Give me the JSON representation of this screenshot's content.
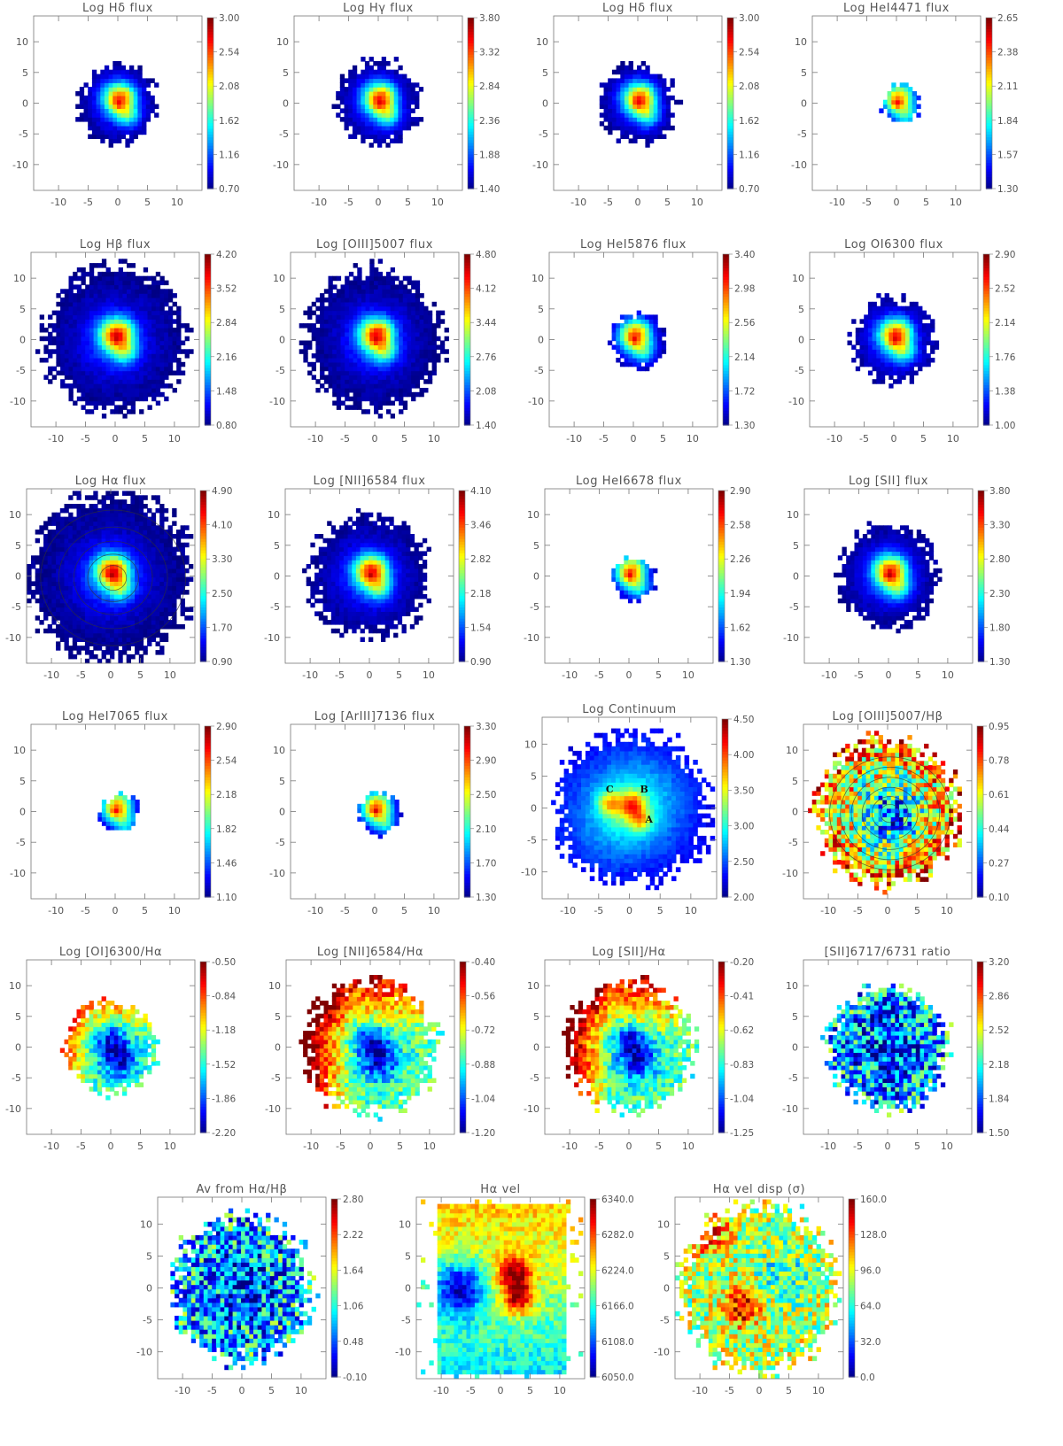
{
  "colors": {
    "axis": "#777777",
    "text": "#555555",
    "contour": "#333333"
  },
  "axis_tick_labels": [
    "-10",
    "-5",
    "0",
    "5",
    "10"
  ],
  "panels": [
    {
      "title": "Log Hδ flux",
      "cbar": [
        "3.00",
        "2.54",
        "2.08",
        "1.62",
        "1.16",
        "0.70"
      ],
      "pattern": "flux",
      "r": 6.5,
      "vanish": 0.18,
      "cpow": 1.6
    },
    {
      "title": "Log Hγ flux",
      "cbar": [
        "3.80",
        "3.32",
        "2.84",
        "2.36",
        "1.88",
        "1.40"
      ],
      "pattern": "flux",
      "r": 7,
      "vanish": 0.2,
      "cpow": 1.6
    },
    {
      "title": "Log Hδ flux",
      "cbar": [
        "3.00",
        "2.54",
        "2.08",
        "1.62",
        "1.16",
        "0.70"
      ],
      "pattern": "flux",
      "r": 6.5,
      "vanish": 0.18,
      "cpow": 1.6
    },
    {
      "title": "Log HeI4471 flux",
      "cbar": [
        "2.65",
        "2.38",
        "2.11",
        "1.84",
        "1.57",
        "1.30"
      ],
      "pattern": "flux",
      "r": 3.2,
      "vanish": 0.05,
      "cpow": 1.2
    },
    {
      "title": "Log Hβ flux",
      "cbar": [
        "4.20",
        "3.52",
        "2.84",
        "2.16",
        "1.48",
        "0.80"
      ],
      "pattern": "flux",
      "r": 12,
      "vanish": 0.25,
      "cpow": 2.0
    },
    {
      "title": "Log [OIII]5007 flux",
      "cbar": [
        "4.80",
        "4.12",
        "3.44",
        "2.76",
        "2.08",
        "1.40"
      ],
      "pattern": "flux",
      "r": 11.5,
      "vanish": 0.2,
      "cpow": 2.0
    },
    {
      "title": "Log HeI5876 flux",
      "cbar": [
        "3.40",
        "2.98",
        "2.56",
        "2.14",
        "1.72",
        "1.30"
      ],
      "pattern": "flux",
      "r": 4.6,
      "vanish": 0.04,
      "cpow": 1.3
    },
    {
      "title": "Log OI6300 flux",
      "cbar": [
        "2.90",
        "2.52",
        "2.14",
        "1.76",
        "1.38",
        "1.00"
      ],
      "pattern": "flux",
      "r": 7,
      "vanish": 0.2,
      "cpow": 1.5
    },
    {
      "title": "Log Hα flux",
      "cbar": [
        "4.90",
        "4.10",
        "3.30",
        "2.50",
        "1.70",
        "0.90"
      ],
      "pattern": "flux",
      "r": 14,
      "vanish": 0.25,
      "cpow": 2.2,
      "contours": true
    },
    {
      "title": "Log [NII]6584 flux",
      "cbar": [
        "4.10",
        "3.46",
        "2.82",
        "2.18",
        "1.54",
        "0.90"
      ],
      "pattern": "flux",
      "r": 10,
      "vanish": 0.2,
      "cpow": 1.8
    },
    {
      "title": "Log HeI6678 flux",
      "cbar": [
        "2.90",
        "2.58",
        "2.26",
        "1.94",
        "1.62",
        "1.30"
      ],
      "pattern": "flux",
      "r": 3.6,
      "vanish": 0.05,
      "cpow": 1.2
    },
    {
      "title": "Log [SII] flux",
      "cbar": [
        "3.80",
        "3.30",
        "2.80",
        "2.30",
        "1.80",
        "1.30"
      ],
      "pattern": "flux",
      "r": 8.5,
      "vanish": 0.2,
      "cpow": 1.7
    },
    {
      "title": "Log HeI7065 flux",
      "cbar": [
        "2.90",
        "2.54",
        "2.18",
        "1.82",
        "1.46",
        "1.10"
      ],
      "pattern": "flux",
      "r": 3.2,
      "vanish": 0.05,
      "cpow": 1.2
    },
    {
      "title": "Log [ArIII]7136 flux",
      "cbar": [
        "3.30",
        "2.90",
        "2.50",
        "2.10",
        "1.70",
        "1.30"
      ],
      "pattern": "flux",
      "r": 3.6,
      "vanish": 0.05,
      "cpow": 1.2
    },
    {
      "title": "Log Continuum",
      "cbar": [
        "4.50",
        "4.00",
        "3.50",
        "3.00",
        "2.50",
        "2.00"
      ],
      "pattern": "continuum",
      "r": 12,
      "vanish": 0.15,
      "cpow": 1.8,
      "knots": [
        "C",
        "B",
        "A"
      ]
    },
    {
      "title": "Log [OIII]5007/Hβ",
      "cbar": [
        "0.95",
        "0.78",
        "0.61",
        "0.44",
        "0.27",
        "0.10"
      ],
      "pattern": "ratio_oiii",
      "r": 12,
      "vanish": 0.1,
      "contours": true
    },
    {
      "title": "Log [OI]6300/Hα",
      "cbar": [
        "-0.50",
        "-0.84",
        "-1.18",
        "-1.52",
        "-1.86",
        "-2.20"
      ],
      "pattern": "ratio_low",
      "r": 7.5,
      "vanish": 0.1
    },
    {
      "title": "Log [NII]6584/Hα",
      "cbar": [
        "-0.40",
        "-0.56",
        "-0.72",
        "-0.88",
        "-1.04",
        "-1.20"
      ],
      "pattern": "ratio_low",
      "r": 11,
      "vanish": 0.1
    },
    {
      "title": "Log [SII]/Hα",
      "cbar": [
        "-0.20",
        "-0.41",
        "-0.62",
        "-0.83",
        "-1.04",
        "-1.25"
      ],
      "pattern": "ratio_low",
      "r": 10.5,
      "vanish": 0.1
    },
    {
      "title": "[SII]6717/6731 ratio",
      "cbar": [
        "3.20",
        "2.86",
        "2.52",
        "2.18",
        "1.84",
        "1.50"
      ],
      "pattern": "noisy_low",
      "r": 10,
      "vanish": 0.1
    },
    {
      "title": "Av from Hα/Hβ",
      "cbar": [
        "2.80",
        "2.22",
        "1.64",
        "1.06",
        "0.48",
        "-0.10"
      ],
      "pattern": "noisy_low",
      "r": 11.5,
      "vanish": 0.1
    },
    {
      "title": "Hα vel",
      "cbar": [
        "6340.0",
        "6282.0",
        "6224.0",
        "6166.0",
        "6108.0",
        "6050.0"
      ],
      "pattern": "velocity",
      "r": 14,
      "vanish": 0.0
    },
    {
      "title": "Hα vel disp (σ)",
      "cbar": [
        "160.0",
        "128.0",
        "96.0",
        "64.0",
        "32.0",
        "0.0"
      ],
      "pattern": "dispersion",
      "r": 13,
      "vanish": 0.05
    }
  ]
}
